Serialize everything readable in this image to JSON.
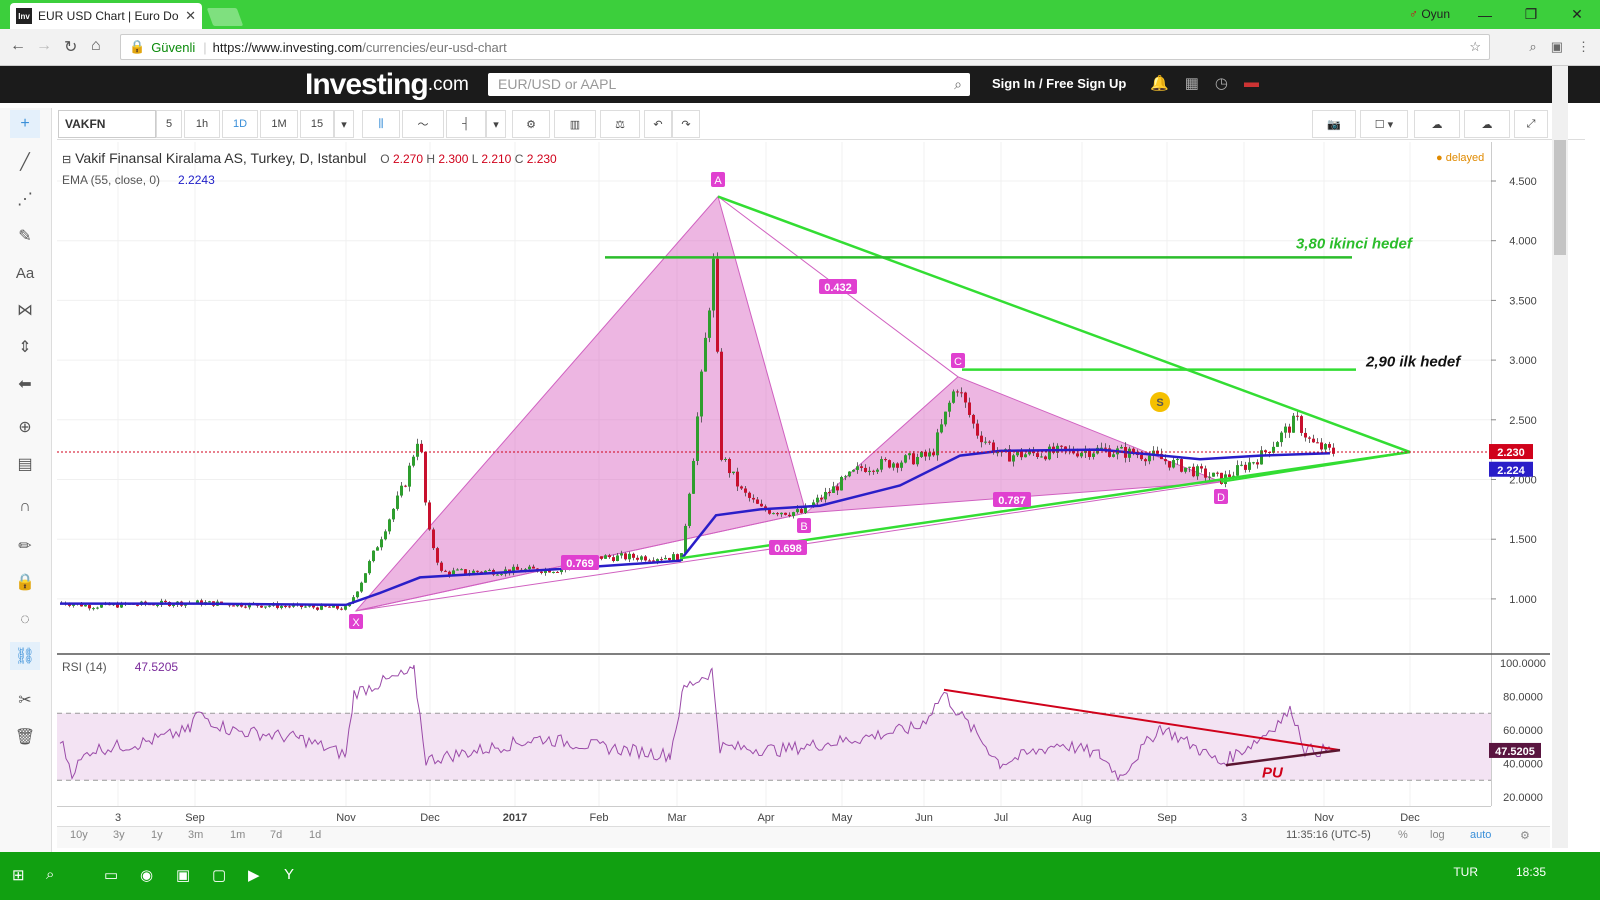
{
  "browser": {
    "tab_title": "EUR USD Chart | Euro Do",
    "tab_favicon": "Inv",
    "user_label": "Oyun",
    "secure_label": "Güvenli",
    "url_host": "https://www.investing.com",
    "url_path": "/currencies/eur-usd-chart"
  },
  "site": {
    "logo_main": "Investing",
    "logo_suffix": ".com",
    "search_placeholder": "EUR/USD or AAPL",
    "signin_label": "Sign In / Free Sign Up"
  },
  "toolbar": {
    "symbol": "VAKFN",
    "intervals": [
      "5",
      "1h",
      "1D",
      "1M",
      "15"
    ],
    "active_interval": "1D"
  },
  "legend": {
    "title": "Vakif Finansal Kiralama AS, Turkey, D, Istanbul",
    "open_label": "O",
    "open": "2.270",
    "high_label": "H",
    "high": "2.300",
    "low_label": "L",
    "low": "2.210",
    "close_label": "C",
    "close": "2.230",
    "ema_label": "EMA (55, close, 0)",
    "ema_value": "2.2243",
    "rsi_label": "RSI (14)",
    "rsi_value": "47.5205",
    "delayed": "delayed"
  },
  "chart_data": {
    "type": "candlestick",
    "x_ticks": [
      "3",
      "Sep",
      "Nov",
      "Dec",
      "2017",
      "Feb",
      "Mar",
      "Apr",
      "May",
      "Jun",
      "Jul",
      "Aug",
      "Sep",
      "3",
      "Nov",
      "Dec"
    ],
    "y_ticks": [
      "4.500",
      "4.000",
      "3.500",
      "3.000",
      "2.500",
      "2.000",
      "1.500",
      "1.000"
    ],
    "rsi_ticks": [
      "100.0000",
      "80.0000",
      "60.0000",
      "40.0000",
      "20.0000"
    ],
    "last_price": "2.230",
    "ema_price": "2.224",
    "rsi_last": "47.5205",
    "pattern_points": [
      {
        "label": "X",
        "value": 0.9
      },
      {
        "label": "A",
        "value": 4.37
      },
      {
        "label": "B",
        "value": 1.72
      },
      {
        "label": "C",
        "value": 2.86
      },
      {
        "label": "D",
        "value": 1.98
      }
    ],
    "ratios": [
      "0.432",
      "0.769",
      "0.698",
      "0.787"
    ],
    "annotations": [
      {
        "text": "3,80 ikinci hedef",
        "value": 3.86,
        "color": "#2bbd2b"
      },
      {
        "text": "2,90 ilk hedef",
        "value": 2.92,
        "color": "#111111"
      },
      {
        "text": "PU",
        "color": "#d0021b"
      }
    ],
    "marker": "S",
    "time_label": "11:35:16 (UTC-5)"
  },
  "bottom": {
    "ranges": [
      "10y",
      "3y",
      "1y",
      "3m",
      "1m",
      "7d",
      "1d"
    ],
    "pct": "%",
    "log": "log",
    "auto": "auto"
  },
  "taskbar": {
    "lang": "TUR",
    "time": "18:35"
  }
}
